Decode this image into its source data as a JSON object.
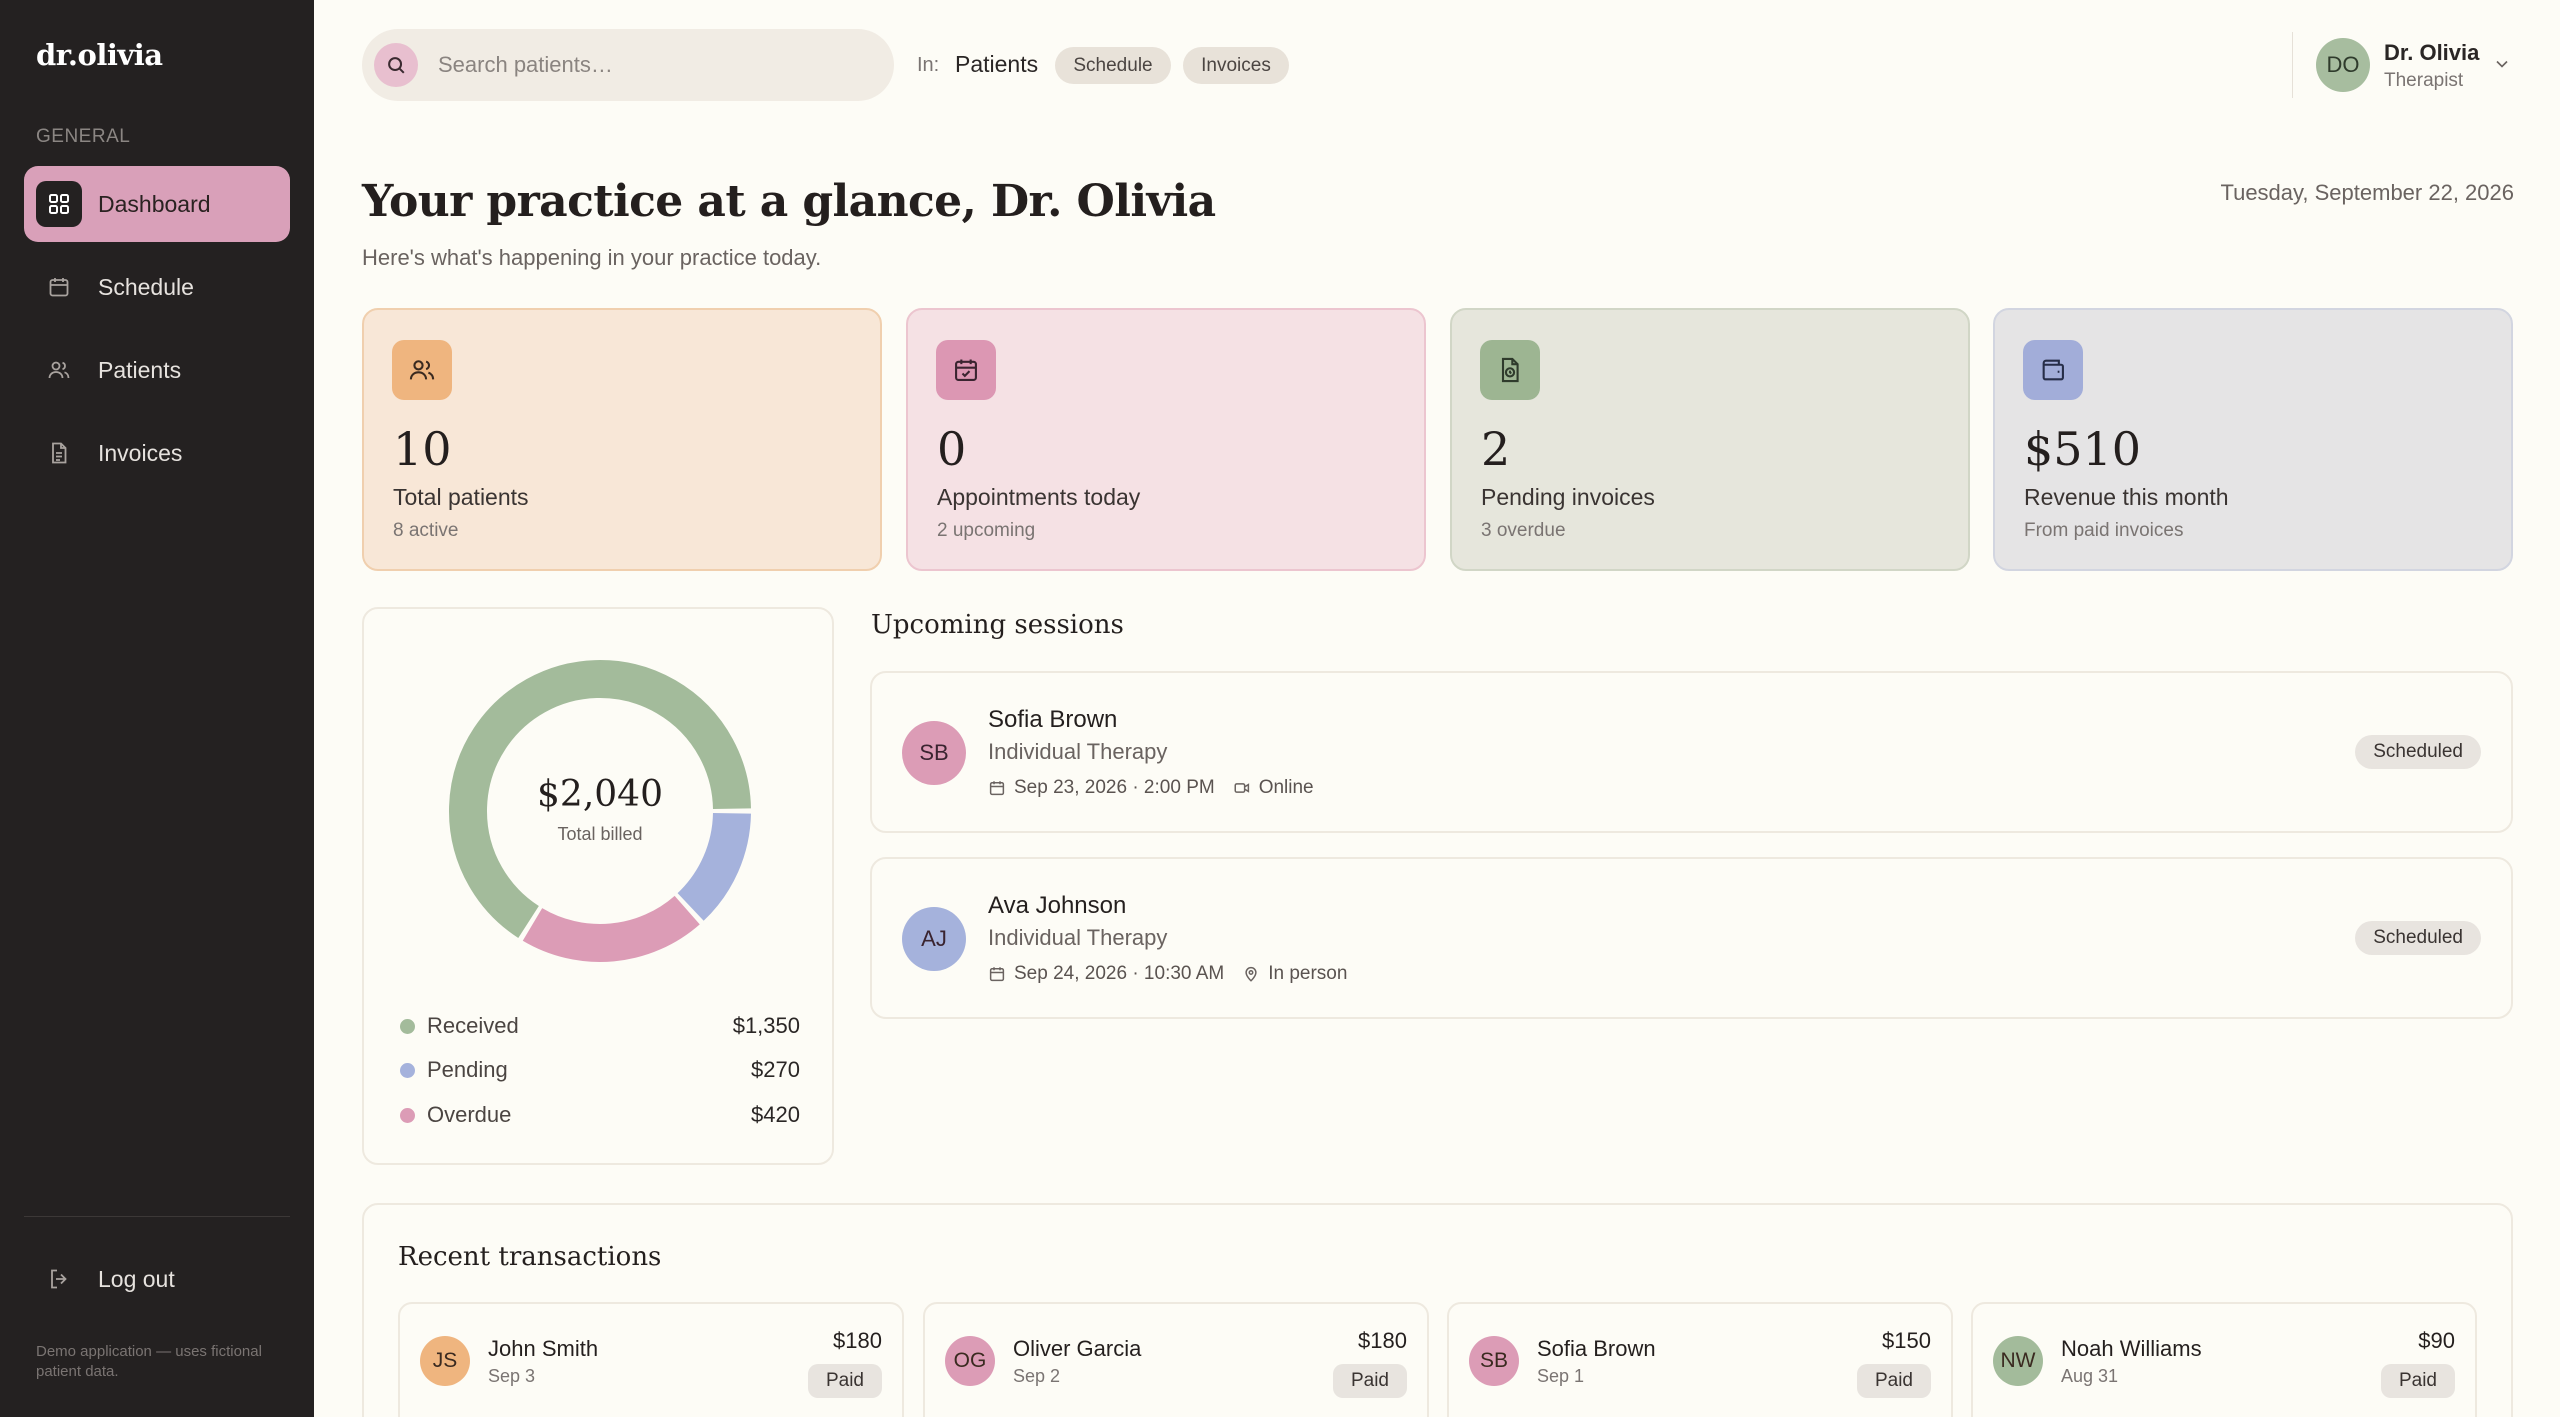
{
  "app": {
    "logo": "dr.olivia"
  },
  "sidebar": {
    "section": "GENERAL",
    "items": [
      {
        "label": "Dashboard",
        "icon": "grid-icon",
        "active": true
      },
      {
        "label": "Schedule",
        "icon": "calendar-icon"
      },
      {
        "label": "Patients",
        "icon": "users-icon"
      },
      {
        "label": "Invoices",
        "icon": "document-icon"
      }
    ],
    "logout": "Log out",
    "demo_note": "Demo application — uses fictional patient data."
  },
  "search": {
    "placeholder": "Search patients…",
    "in_label": "In:",
    "scope_active": "Patients",
    "scope_options": [
      "Schedule",
      "Invoices"
    ]
  },
  "user": {
    "initials": "DO",
    "name": "Dr. Olivia",
    "role": "Therapist"
  },
  "header": {
    "title": "Your practice at a glance, Dr. Olivia",
    "subtitle": "Here's what's happening in your practice today.",
    "date": "Tuesday, September 22, 2026"
  },
  "stats": [
    {
      "value": "10",
      "label": "Total patients",
      "sub": "8 active",
      "icon": "users-icon",
      "bg": "#f8e7d7",
      "border": "#f0cfae",
      "icon_bg": "#efb57f"
    },
    {
      "value": "0",
      "label": "Appointments today",
      "sub": "2 upcoming",
      "icon": "calendar-check-icon",
      "bg": "#f5e1e4",
      "border": "#ecc5cf",
      "icon_bg": "#dc97b3"
    },
    {
      "value": "2",
      "label": "Pending invoices",
      "sub": "3 overdue",
      "icon": "document-clock-icon",
      "bg": "#e6e6dc",
      "border": "#d1d6c6",
      "icon_bg": "#9db592"
    },
    {
      "value": "$510",
      "label": "Revenue this month",
      "sub": "From paid invoices",
      "icon": "wallet-icon",
      "bg": "#e5e4e5",
      "border": "#d2d5e0",
      "icon_bg": "#a2add9"
    }
  ],
  "billing": {
    "total": "$2,040",
    "total_label": "Total billed",
    "segments": [
      {
        "name": "Received",
        "value": "$1,350",
        "amount": 1350,
        "color": "#a3bb9b"
      },
      {
        "name": "Pending",
        "value": "$270",
        "amount": 270,
        "color": "#a5b2dc"
      },
      {
        "name": "Overdue",
        "value": "$420",
        "amount": 420,
        "color": "#dc9cb6"
      }
    ]
  },
  "sessions": {
    "title": "Upcoming sessions",
    "items": [
      {
        "initials": "SB",
        "name": "Sofia Brown",
        "type": "Individual Therapy",
        "when": "Sep 23, 2026 · 2:00 PM",
        "mode": "Online",
        "mode_icon": "video-icon",
        "status": "Scheduled",
        "avatar_color": "#dc9cb6"
      },
      {
        "initials": "AJ",
        "name": "Ava Johnson",
        "type": "Individual Therapy",
        "when": "Sep 24, 2026 · 10:30 AM",
        "mode": "In person",
        "mode_icon": "location-pin-icon",
        "status": "Scheduled",
        "avatar_color": "#a5b2dc"
      }
    ]
  },
  "transactions": {
    "title": "Recent transactions",
    "items": [
      {
        "initials": "JS",
        "name": "John Smith",
        "date": "Sep 3",
        "amount": "$180",
        "status": "Paid",
        "avatar_color": "#efb57f"
      },
      {
        "initials": "OG",
        "name": "Oliver Garcia",
        "date": "Sep 2",
        "amount": "$180",
        "status": "Paid",
        "avatar_color": "#dc9cb6"
      },
      {
        "initials": "SB",
        "name": "Sofia Brown",
        "date": "Sep 1",
        "amount": "$150",
        "status": "Paid",
        "avatar_color": "#dc9cb6"
      },
      {
        "initials": "NW",
        "name": "Noah Williams",
        "date": "Aug 31",
        "amount": "$90",
        "status": "Paid",
        "avatar_color": "#a3bb9b"
      }
    ]
  }
}
